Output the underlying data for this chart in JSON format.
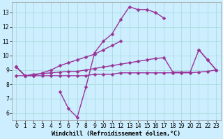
{
  "background_color": "#cceeff",
  "grid_color": "#aadddd",
  "line_color": "#993399",
  "xlabel": "Windchill (Refroidissement éolien,°C)",
  "x_values": [
    0,
    1,
    2,
    3,
    4,
    5,
    6,
    7,
    8,
    9,
    10,
    11,
    12,
    13,
    14,
    15,
    16,
    17,
    18,
    19,
    20,
    21,
    22,
    23
  ],
  "line1": [
    9.2,
    8.6,
    null,
    null,
    null,
    7.5,
    6.3,
    5.7,
    7.8,
    10.2,
    11.0,
    11.5,
    12.5,
    13.4,
    13.2,
    13.2,
    13.0,
    12.6,
    null,
    null,
    null,
    10.4,
    9.7,
    9.0
  ],
  "line2": [
    9.2,
    8.6,
    8.6,
    8.8,
    9.0,
    9.3,
    9.5,
    9.7,
    9.9,
    10.1,
    10.4,
    10.7,
    11.0,
    null,
    null,
    null,
    null,
    null,
    null,
    null,
    null,
    null,
    null,
    null
  ],
  "line3": [
    8.6,
    8.6,
    8.6,
    8.6,
    8.6,
    8.6,
    8.6,
    8.6,
    8.6,
    8.7,
    8.7,
    8.7,
    8.8,
    8.8,
    8.8,
    8.8,
    8.8,
    8.8,
    8.8,
    8.8,
    8.8,
    8.85,
    8.9,
    9.0
  ],
  "line4": [
    9.2,
    8.6,
    8.7,
    8.75,
    8.8,
    8.85,
    8.9,
    8.9,
    9.0,
    9.1,
    9.2,
    9.3,
    9.4,
    9.5,
    9.6,
    9.7,
    9.8,
    9.85,
    8.85,
    8.85,
    8.85,
    10.4,
    9.7,
    9.0
  ],
  "ylim": [
    5.5,
    13.7
  ],
  "xlim": [
    -0.5,
    23.5
  ],
  "yticks": [
    6,
    7,
    8,
    9,
    10,
    11,
    12,
    13
  ],
  "xticks": [
    0,
    1,
    2,
    3,
    4,
    5,
    6,
    7,
    8,
    9,
    10,
    11,
    12,
    13,
    14,
    15,
    16,
    17,
    18,
    19,
    20,
    21,
    22,
    23
  ],
  "tick_fontsize": 5.5,
  "xlabel_fontsize": 6,
  "marker_size": 2.5,
  "linewidth": 1.0
}
